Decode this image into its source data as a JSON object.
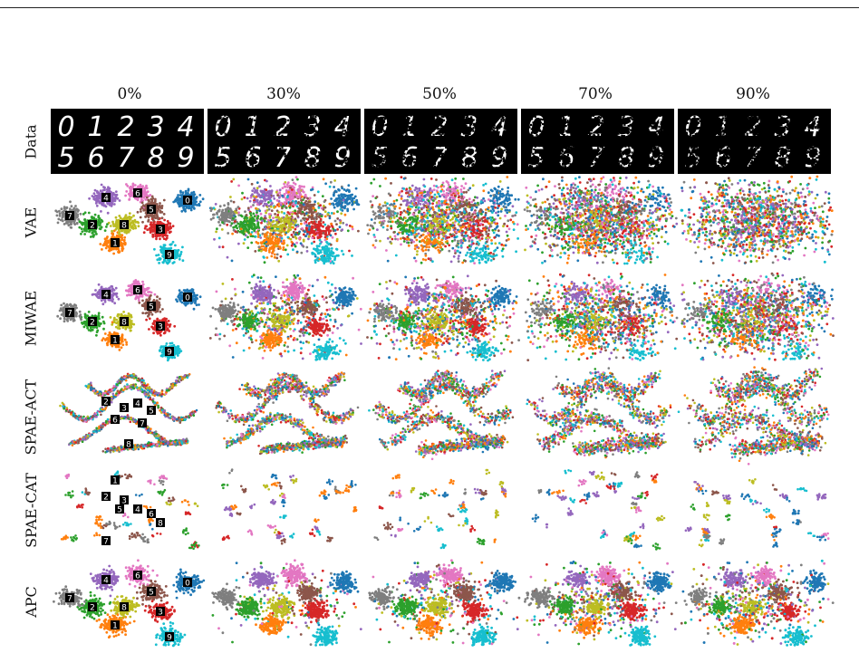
{
  "columns": [
    "0%",
    "30%",
    "50%",
    "70%",
    "90%"
  ],
  "rows": [
    "Data",
    "VAE",
    "MIWAE",
    "SPAE-ACT",
    "SPAE-CAT",
    "APC"
  ],
  "digit_rows": [
    [
      "0",
      "1",
      "2",
      "3",
      "4"
    ],
    [
      "5",
      "6",
      "7",
      "8",
      "9"
    ]
  ],
  "palette": [
    "#1f77b4",
    "#ff7f0e",
    "#2ca02c",
    "#d62728",
    "#9467bd",
    "#8c564b",
    "#e377c2",
    "#7f7f7f",
    "#bcbd22",
    "#17becf"
  ],
  "digit_colors": {
    "ink": "#ffffff",
    "background": "#000000"
  }
}
